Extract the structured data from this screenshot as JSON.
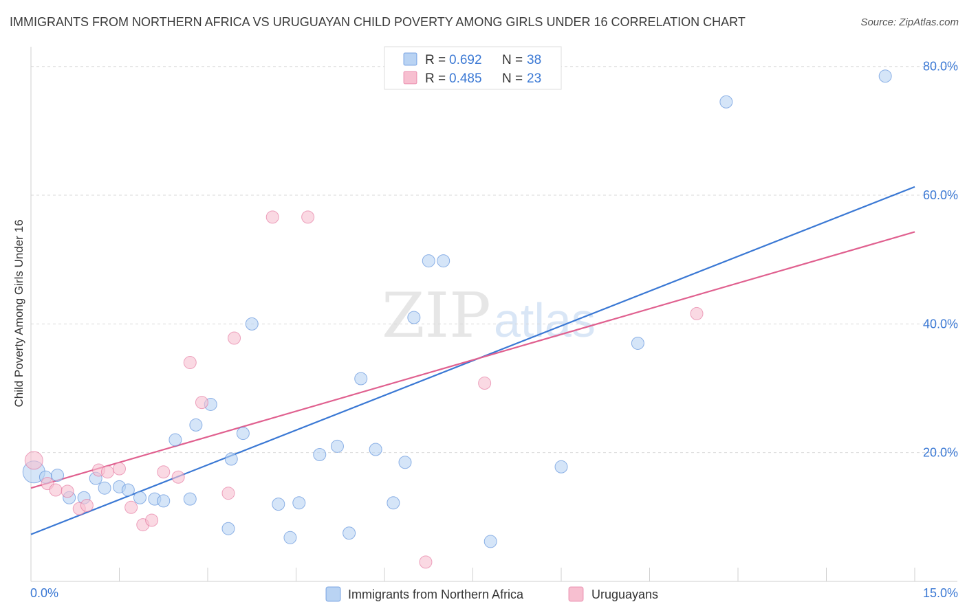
{
  "title": "IMMIGRANTS FROM NORTHERN AFRICA VS URUGUAYAN CHILD POVERTY AMONG GIRLS UNDER 16 CORRELATION CHART",
  "source": "Source: ZipAtlas.com",
  "watermark": {
    "zip": "ZIP",
    "atlas": "atlas"
  },
  "colors": {
    "blue": "#3a78d4",
    "blue_fill": "#b9d3f3",
    "pink": "#e0608f",
    "pink_fill": "#f7bfd0",
    "grid": "#d9d9d9",
    "axis_label": "#3a78d4"
  },
  "chart_data": {
    "type": "scatter",
    "title": "IMMIGRANTS FROM NORTHERN AFRICA VS URUGUAYAN CHILD POVERTY AMONG GIRLS UNDER 16 CORRELATION CHART",
    "xlabel": "",
    "ylabel": "Child Poverty Among Girls Under 16",
    "xlim": [
      0,
      15
    ],
    "ylim": [
      0,
      82
    ],
    "x_tick_labels": [
      "0.0%",
      "15.0%"
    ],
    "y_ticks": [
      20,
      40,
      60,
      80
    ],
    "y_tick_labels": [
      "20.0%",
      "40.0%",
      "60.0%",
      "80.0%"
    ],
    "grid": true,
    "legend_position": "top-center",
    "series": [
      {
        "name": "Immigrants from Northern Africa",
        "color": "#3a78d4",
        "R": "0.692",
        "N": "38",
        "trend": {
          "x": [
            0,
            15
          ],
          "y": [
            7.3,
            61.3
          ]
        },
        "points": [
          {
            "x": 0.05,
            "y": 17.0,
            "s": 16
          },
          {
            "x": 0.25,
            "y": 16.2,
            "s": 9
          },
          {
            "x": 0.45,
            "y": 16.5,
            "s": 9
          },
          {
            "x": 0.65,
            "y": 13.0,
            "s": 9
          },
          {
            "x": 0.9,
            "y": 13.0,
            "s": 9
          },
          {
            "x": 1.1,
            "y": 16.0,
            "s": 9
          },
          {
            "x": 1.25,
            "y": 14.5,
            "s": 9
          },
          {
            "x": 1.5,
            "y": 14.7,
            "s": 9
          },
          {
            "x": 1.65,
            "y": 14.2,
            "s": 9
          },
          {
            "x": 1.85,
            "y": 13.0,
            "s": 9
          },
          {
            "x": 2.1,
            "y": 12.8,
            "s": 9
          },
          {
            "x": 2.25,
            "y": 12.5,
            "s": 9
          },
          {
            "x": 2.45,
            "y": 22.0,
            "s": 9
          },
          {
            "x": 2.7,
            "y": 12.8,
            "s": 9
          },
          {
            "x": 2.8,
            "y": 24.3,
            "s": 9
          },
          {
            "x": 3.05,
            "y": 27.5,
            "s": 9
          },
          {
            "x": 3.35,
            "y": 8.2,
            "s": 9
          },
          {
            "x": 3.4,
            "y": 19.0,
            "s": 9
          },
          {
            "x": 3.6,
            "y": 23.0,
            "s": 9
          },
          {
            "x": 3.75,
            "y": 40.0,
            "s": 9
          },
          {
            "x": 4.2,
            "y": 12.0,
            "s": 9
          },
          {
            "x": 4.4,
            "y": 6.8,
            "s": 9
          },
          {
            "x": 4.55,
            "y": 12.2,
            "s": 9
          },
          {
            "x": 4.9,
            "y": 19.7,
            "s": 9
          },
          {
            "x": 5.2,
            "y": 21.0,
            "s": 9
          },
          {
            "x": 5.4,
            "y": 7.5,
            "s": 9
          },
          {
            "x": 5.6,
            "y": 31.5,
            "s": 9
          },
          {
            "x": 5.85,
            "y": 20.5,
            "s": 9
          },
          {
            "x": 6.15,
            "y": 12.2,
            "s": 9
          },
          {
            "x": 6.35,
            "y": 18.5,
            "s": 9
          },
          {
            "x": 6.5,
            "y": 41.0,
            "s": 9
          },
          {
            "x": 6.75,
            "y": 49.8,
            "s": 9
          },
          {
            "x": 7.0,
            "y": 49.8,
            "s": 9
          },
          {
            "x": 7.8,
            "y": 6.2,
            "s": 9
          },
          {
            "x": 9.0,
            "y": 17.8,
            "s": 9
          },
          {
            "x": 10.3,
            "y": 37.0,
            "s": 9
          },
          {
            "x": 11.8,
            "y": 74.5,
            "s": 9
          },
          {
            "x": 14.5,
            "y": 78.5,
            "s": 9
          }
        ]
      },
      {
        "name": "Uruguayans",
        "color": "#e0608f",
        "R": "0.485",
        "N": "23",
        "trend": {
          "x": [
            0,
            15
          ],
          "y": [
            14.5,
            54.3
          ]
        },
        "points": [
          {
            "x": 0.05,
            "y": 18.8,
            "s": 13
          },
          {
            "x": 0.28,
            "y": 15.2,
            "s": 9
          },
          {
            "x": 0.42,
            "y": 14.2,
            "s": 9
          },
          {
            "x": 0.62,
            "y": 14.0,
            "s": 9
          },
          {
            "x": 0.82,
            "y": 11.3,
            "s": 9
          },
          {
            "x": 0.95,
            "y": 11.8,
            "s": 9
          },
          {
            "x": 1.15,
            "y": 17.3,
            "s": 9
          },
          {
            "x": 1.3,
            "y": 17.0,
            "s": 9
          },
          {
            "x": 1.5,
            "y": 17.5,
            "s": 9
          },
          {
            "x": 1.7,
            "y": 11.5,
            "s": 9
          },
          {
            "x": 1.9,
            "y": 8.8,
            "s": 9
          },
          {
            "x": 2.05,
            "y": 9.5,
            "s": 9
          },
          {
            "x": 2.25,
            "y": 17.0,
            "s": 9
          },
          {
            "x": 2.5,
            "y": 16.2,
            "s": 9
          },
          {
            "x": 2.7,
            "y": 34.0,
            "s": 9
          },
          {
            "x": 2.9,
            "y": 27.8,
            "s": 9
          },
          {
            "x": 3.35,
            "y": 13.7,
            "s": 9
          },
          {
            "x": 3.45,
            "y": 37.8,
            "s": 9
          },
          {
            "x": 4.1,
            "y": 56.6,
            "s": 9
          },
          {
            "x": 4.7,
            "y": 56.6,
            "s": 9
          },
          {
            "x": 6.7,
            "y": 3.0,
            "s": 9
          },
          {
            "x": 7.7,
            "y": 30.8,
            "s": 9
          },
          {
            "x": 11.3,
            "y": 41.6,
            "s": 9
          }
        ]
      }
    ]
  }
}
